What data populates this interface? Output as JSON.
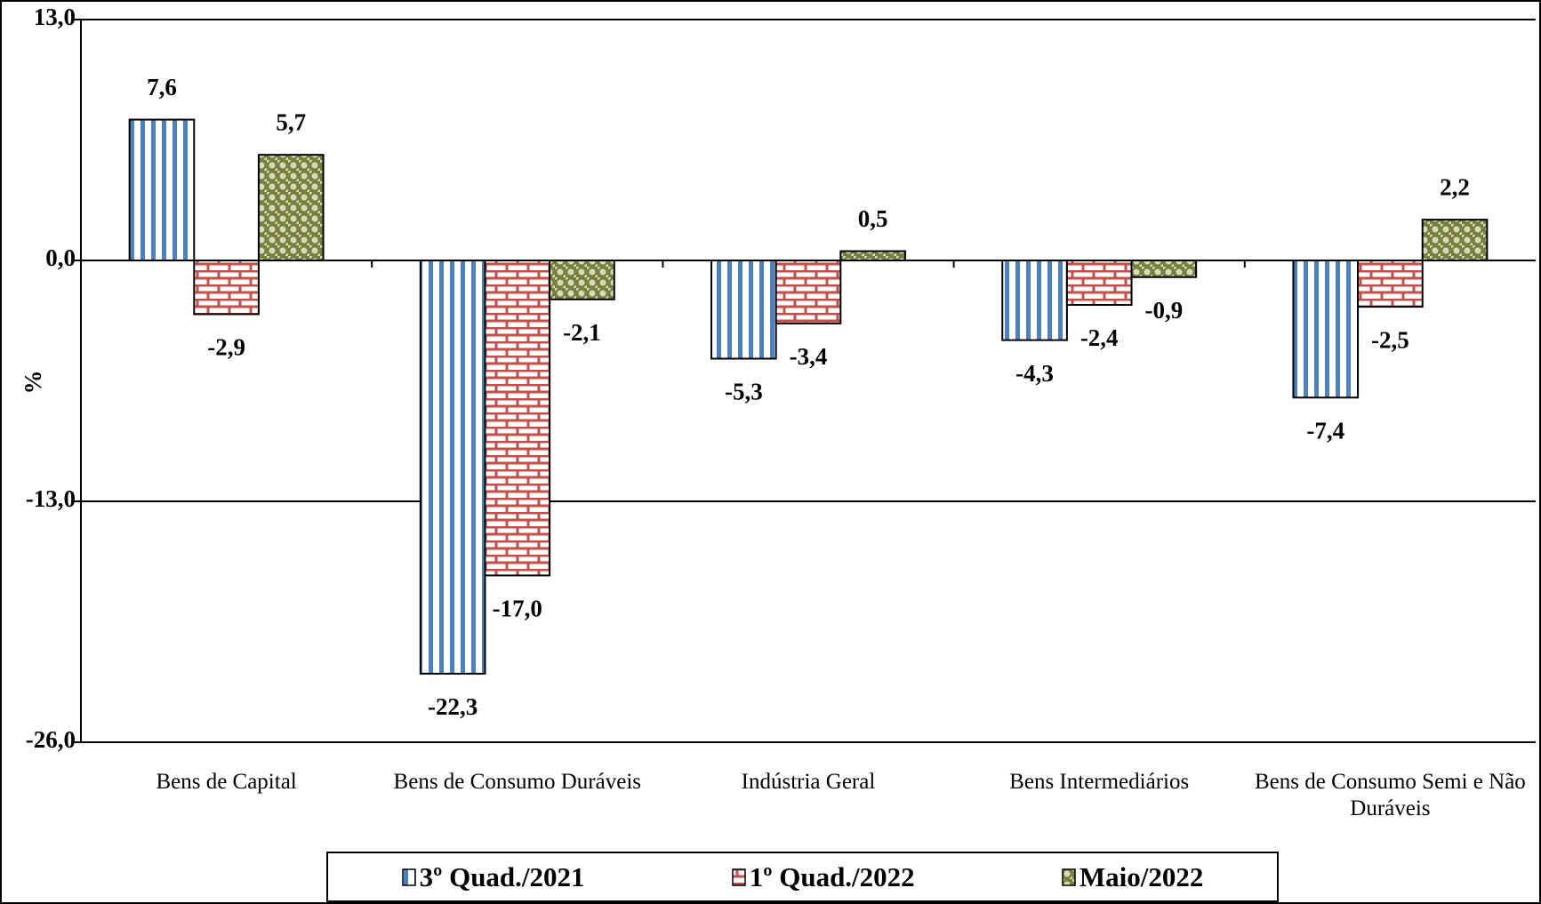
{
  "chart_data": {
    "type": "bar",
    "y_label": "%",
    "categories": [
      "Bens de Capital",
      "Bens de Consumo Duráveis",
      "Indústria Geral",
      "Bens Intermediários",
      "Bens de Consumo Semi e Não Duráveis"
    ],
    "series": [
      {
        "name": "3º Quad./2021",
        "color": "#4f81bd",
        "pattern": "stripes",
        "values": [
          7.6,
          -22.3,
          -5.3,
          -4.3,
          -7.4
        ],
        "value_labels": [
          "7,6",
          "-22,3",
          "-5,3",
          "-4,3",
          "-7,4"
        ]
      },
      {
        "name": "1º Quad./2022",
        "color": "#c0504d",
        "pattern": "bricks",
        "values": [
          -2.9,
          -17.0,
          -3.4,
          -2.4,
          -2.5
        ],
        "value_labels": [
          "-2,9",
          "-17,0",
          "-3,4",
          "-2,4",
          "-2,5"
        ]
      },
      {
        "name": "Maio/2022",
        "color": "#76803a",
        "pattern": "checker",
        "values": [
          5.7,
          -2.1,
          0.5,
          -0.9,
          2.2
        ],
        "value_labels": [
          "5,7",
          "-2,1",
          "0,5",
          "-0,9",
          "2,2"
        ]
      }
    ],
    "ylim": [
      -26,
      13
    ],
    "yticks": [
      {
        "value": -26,
        "label": "-26,0"
      },
      {
        "value": -13,
        "label": "-13,0"
      },
      {
        "value": 0,
        "label": "0,0"
      },
      {
        "value": 13,
        "label": "13,0"
      }
    ],
    "grid": true
  }
}
